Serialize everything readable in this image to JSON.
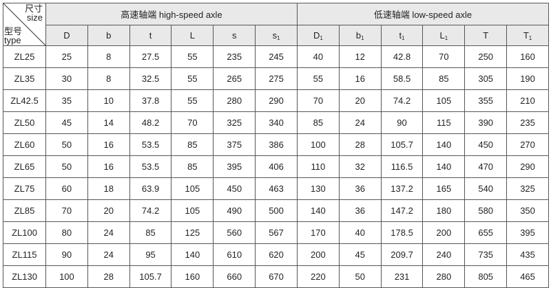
{
  "corner": {
    "size_cn": "尺寸",
    "size_en": "size",
    "type_cn": "型号",
    "type_en": "type"
  },
  "groups": {
    "high": "高速轴端 high-speed axle",
    "low": "低速轴端 low-speed axle"
  },
  "columns": [
    {
      "base": "D",
      "sub": ""
    },
    {
      "base": "b",
      "sub": ""
    },
    {
      "base": "t",
      "sub": ""
    },
    {
      "base": "L",
      "sub": ""
    },
    {
      "base": "s",
      "sub": ""
    },
    {
      "base": "s",
      "sub": "1"
    },
    {
      "base": "D",
      "sub": "1"
    },
    {
      "base": "b",
      "sub": "1"
    },
    {
      "base": "t",
      "sub": "1"
    },
    {
      "base": "L",
      "sub": "1"
    },
    {
      "base": "T",
      "sub": ""
    },
    {
      "base": "T",
      "sub": "1"
    }
  ],
  "rows": [
    [
      "ZL25",
      "25",
      "8",
      "27.5",
      "55",
      "235",
      "245",
      "40",
      "12",
      "42.8",
      "70",
      "250",
      "160"
    ],
    [
      "ZL35",
      "30",
      "8",
      "32.5",
      "55",
      "265",
      "275",
      "55",
      "16",
      "58.5",
      "85",
      "305",
      "190"
    ],
    [
      "ZL42.5",
      "35",
      "10",
      "37.8",
      "55",
      "280",
      "290",
      "70",
      "20",
      "74.2",
      "105",
      "355",
      "210"
    ],
    [
      "ZL50",
      "45",
      "14",
      "48.2",
      "70",
      "325",
      "340",
      "85",
      "24",
      "90",
      "115",
      "390",
      "235"
    ],
    [
      "ZL60",
      "50",
      "16",
      "53.5",
      "85",
      "375",
      "386",
      "100",
      "28",
      "105.7",
      "140",
      "450",
      "270"
    ],
    [
      "ZL65",
      "50",
      "16",
      "53.5",
      "85",
      "395",
      "406",
      "110",
      "32",
      "116.5",
      "140",
      "470",
      "290"
    ],
    [
      "ZL75",
      "60",
      "18",
      "63.9",
      "105",
      "450",
      "463",
      "130",
      "36",
      "137.2",
      "165",
      "540",
      "325"
    ],
    [
      "ZL85",
      "70",
      "20",
      "74.2",
      "105",
      "490",
      "500",
      "140",
      "36",
      "147.2",
      "180",
      "580",
      "350"
    ],
    [
      "ZL100",
      "80",
      "24",
      "85",
      "125",
      "560",
      "567",
      "170",
      "40",
      "178.5",
      "200",
      "655",
      "395"
    ],
    [
      "ZL115",
      "90",
      "24",
      "95",
      "140",
      "610",
      "620",
      "200",
      "45",
      "209.7",
      "240",
      "735",
      "435"
    ],
    [
      "ZL130",
      "100",
      "28",
      "105.7",
      "160",
      "660",
      "670",
      "220",
      "50",
      "231",
      "280",
      "805",
      "465"
    ]
  ]
}
